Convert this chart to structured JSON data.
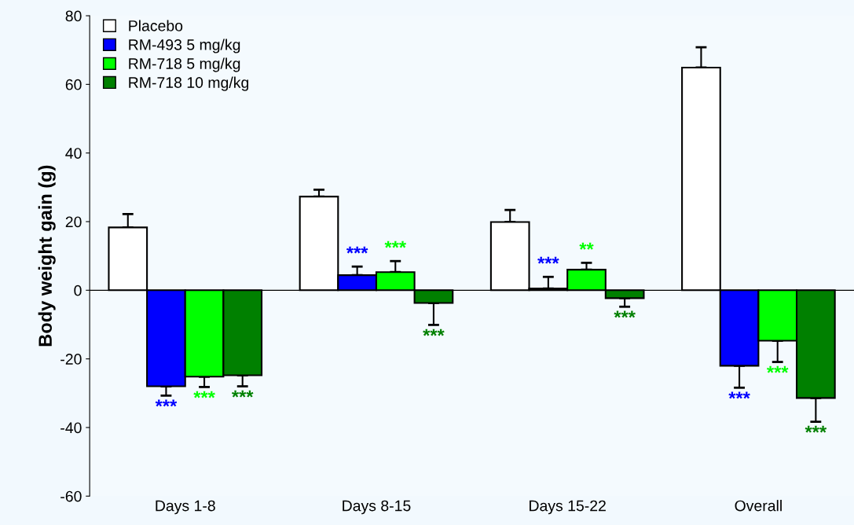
{
  "chart_data": {
    "type": "bar",
    "ylabel": "Body weight gain (g)",
    "categories": [
      "Days 1-8",
      "Days 8-15",
      "Days 15-22",
      "Overall"
    ],
    "series": [
      {
        "name": "Placebo",
        "color": "#ffffff",
        "values": [
          18.3,
          27.3,
          19.9,
          64.9
        ],
        "errors": [
          [
            18.3,
            22.2
          ],
          [
            27.3,
            29.3
          ],
          [
            19.9,
            23.4
          ],
          [
            64.9,
            70.8
          ]
        ],
        "value_labels": [
          null,
          null,
          null,
          null
        ]
      },
      {
        "name": "RM-493 5 mg/kg",
        "color": "#0000ff",
        "values": [
          -28.0,
          4.4,
          0.5,
          -22.0
        ],
        "errors": [
          [
            -30.7,
            -28.0
          ],
          [
            4.4,
            6.9
          ],
          [
            0.5,
            3.9
          ],
          [
            -28.4,
            -22.0
          ]
        ],
        "value_labels": [
          "***",
          "***",
          "***",
          "***"
        ]
      },
      {
        "name": "RM-718 5 mg/kg",
        "color": "#00ff00",
        "values": [
          -25.2,
          5.3,
          6.0,
          -14.7
        ],
        "errors": [
          [
            -28.2,
            -25.2
          ],
          [
            5.3,
            8.5
          ],
          [
            6.0,
            8.0
          ],
          [
            -20.9,
            -14.7
          ]
        ],
        "value_labels": [
          "***",
          "***",
          "**",
          "***"
        ]
      },
      {
        "name": "RM-718 10 mg/kg",
        "color": "#008000",
        "values": [
          -24.8,
          -3.7,
          -2.3,
          -31.4
        ],
        "errors": [
          [
            -28.0,
            -24.8
          ],
          [
            -10.1,
            -3.7
          ],
          [
            -4.8,
            -2.3
          ],
          [
            -38.3,
            -31.4
          ]
        ],
        "value_labels": [
          "***",
          "***",
          "***",
          "***"
        ]
      }
    ],
    "ylim": [
      -60,
      80
    ],
    "yticks": [
      -60,
      -40,
      -20,
      0,
      20,
      40,
      60,
      80
    ],
    "ref_lines": [
      {
        "axis": "y",
        "value": 0,
        "color": "#000000"
      }
    ],
    "grid": false,
    "legend": "top left"
  }
}
